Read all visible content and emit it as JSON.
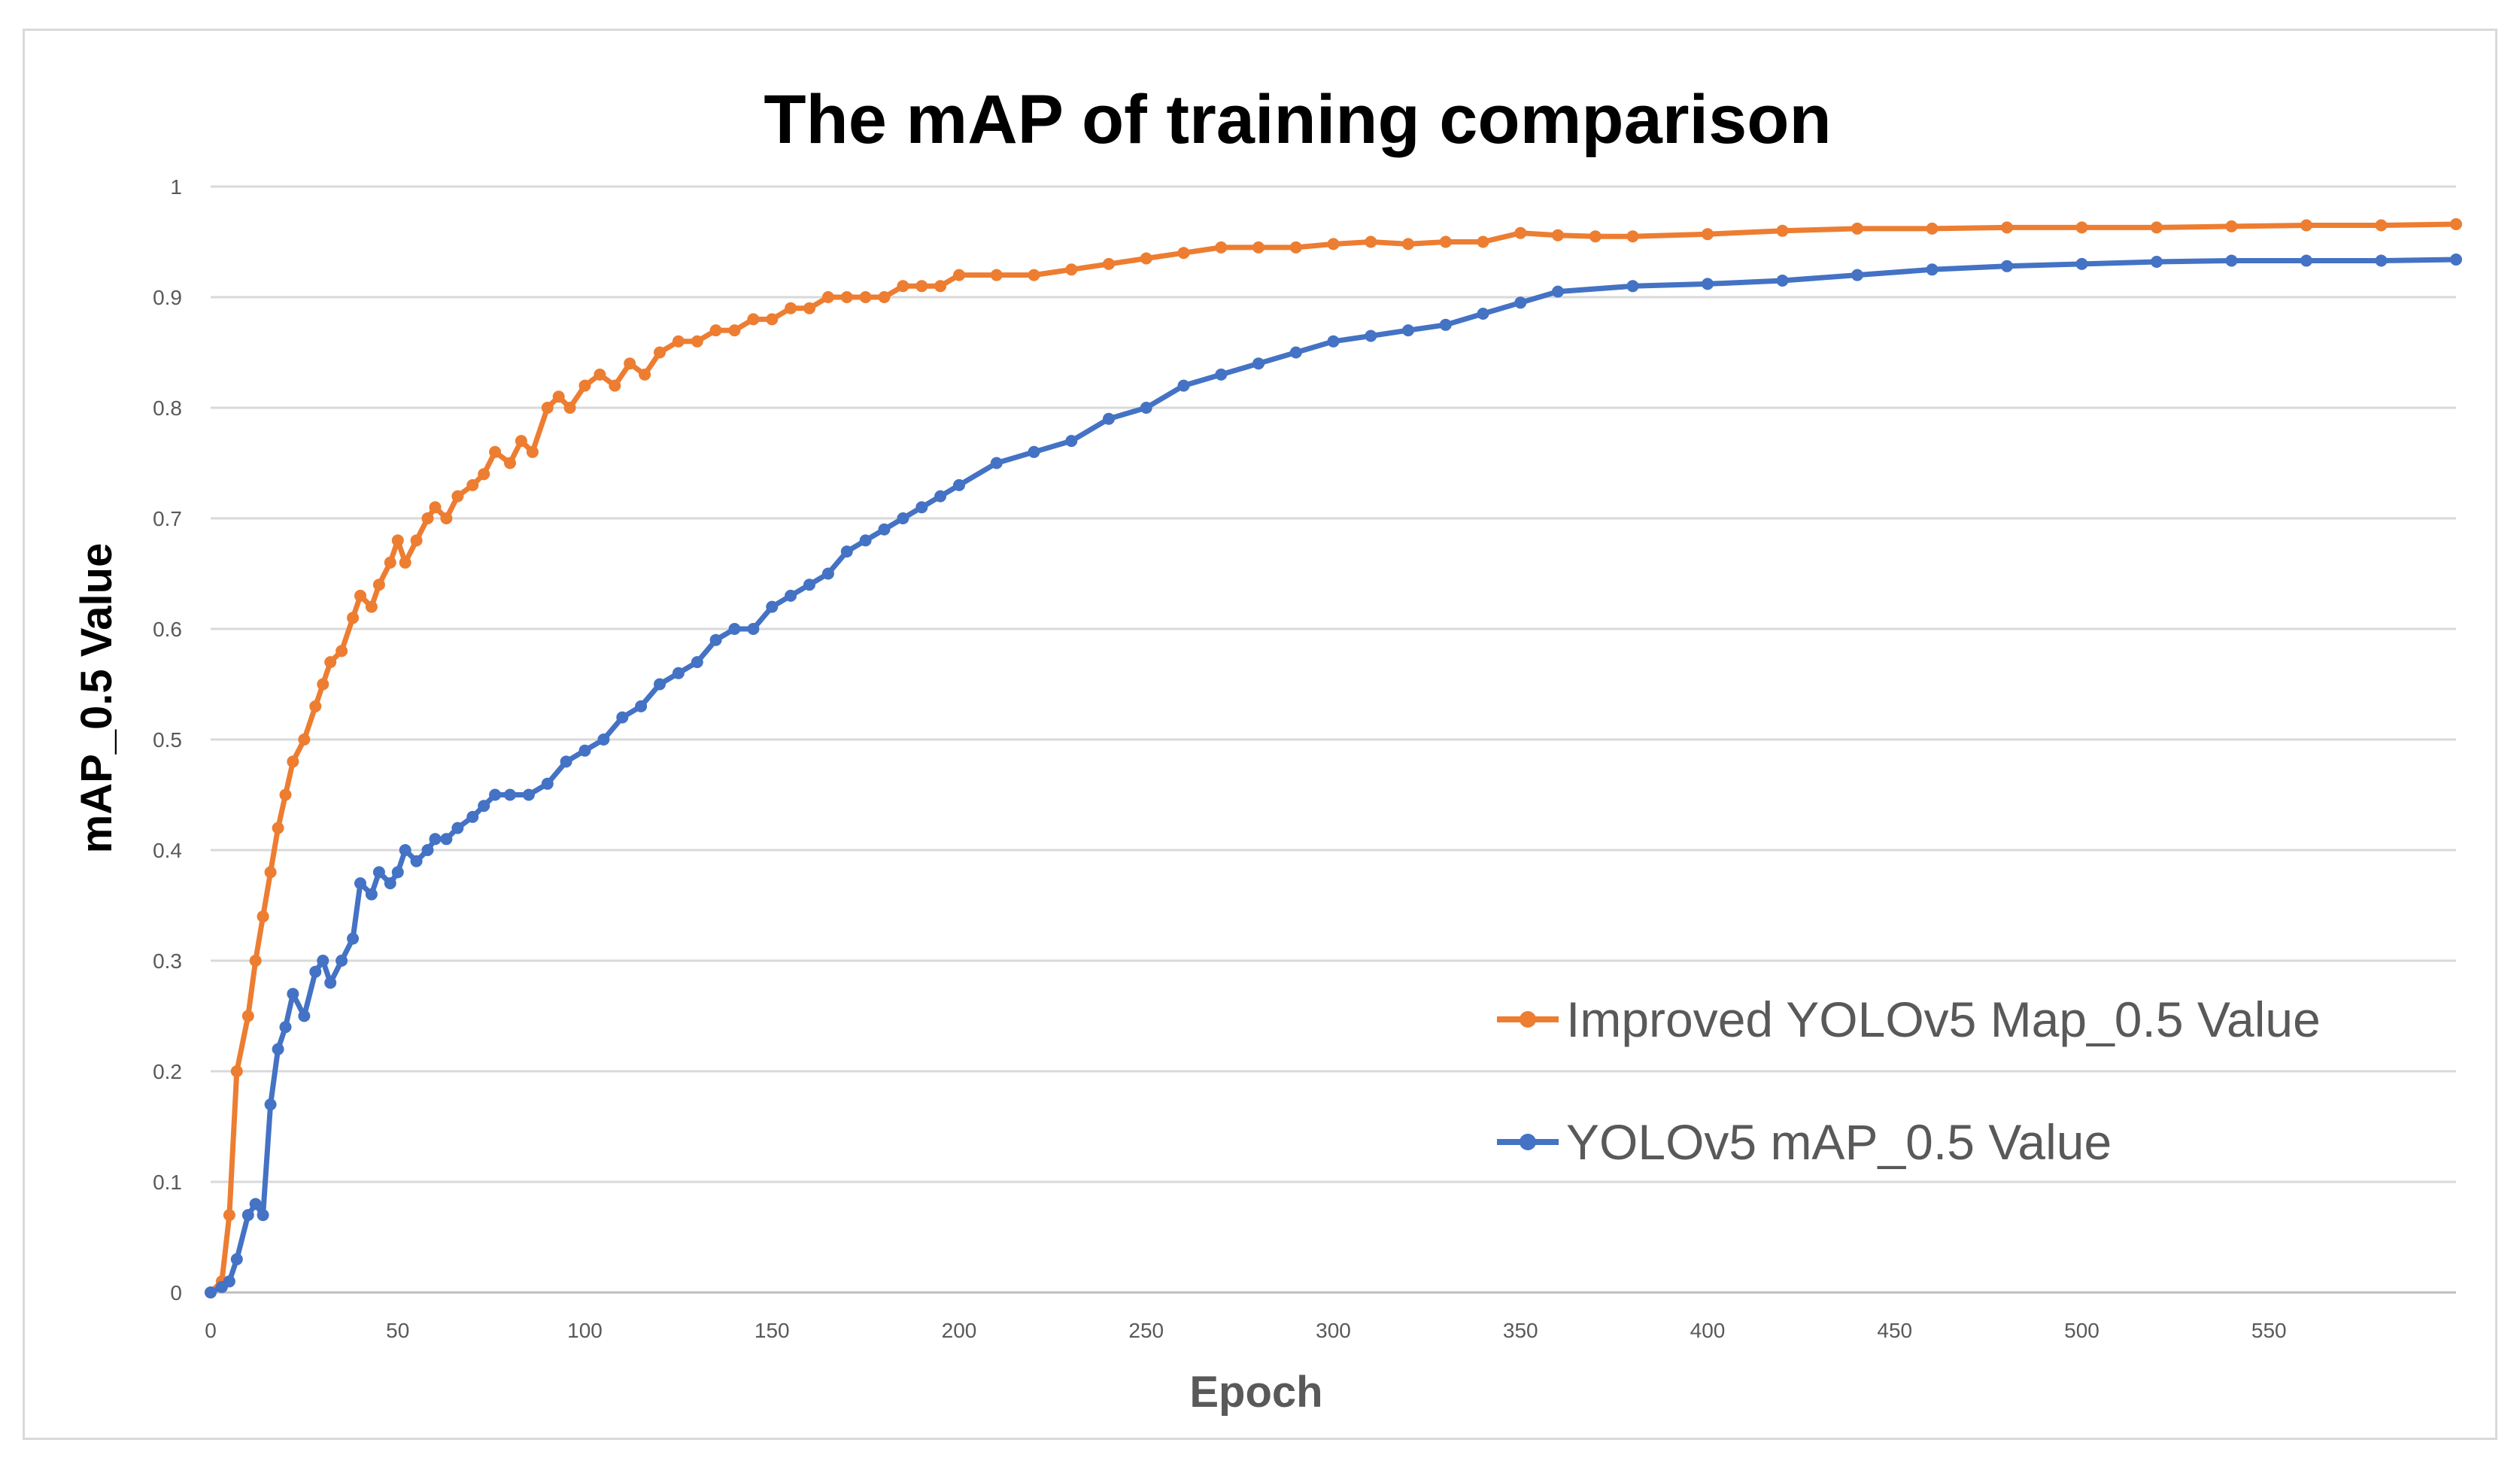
{
  "chart_data": {
    "type": "line",
    "title": "The mAP of  training comparison",
    "xlabel": "Epoch",
    "ylabel": "mAP_0.5 Value",
    "xlim": [
      0,
      600
    ],
    "ylim": [
      0,
      1
    ],
    "x_ticks": [
      "0",
      "50",
      "100",
      "150",
      "200",
      "250",
      "300",
      "350",
      "400",
      "450",
      "500",
      "550"
    ],
    "y_ticks": [
      "0",
      "0.1",
      "0.2",
      "0.3",
      "0.4",
      "0.5",
      "0.6",
      "0.7",
      "0.8",
      "0.9",
      "1"
    ],
    "grid": true,
    "legend_position": "bottom-right",
    "series": [
      {
        "name": "Improved YOLOv5 Map_0.5 Value",
        "color": "#ED7D31",
        "x": [
          0,
          3,
          5,
          7,
          10,
          12,
          14,
          16,
          18,
          20,
          22,
          25,
          28,
          30,
          32,
          35,
          38,
          40,
          43,
          45,
          48,
          50,
          52,
          55,
          58,
          60,
          63,
          66,
          70,
          73,
          76,
          80,
          83,
          86,
          90,
          93,
          96,
          100,
          104,
          108,
          112,
          116,
          120,
          125,
          130,
          135,
          140,
          145,
          150,
          155,
          160,
          165,
          170,
          175,
          180,
          185,
          190,
          195,
          200,
          210,
          220,
          230,
          240,
          250,
          260,
          270,
          280,
          290,
          300,
          310,
          320,
          330,
          340,
          350,
          360,
          370,
          380,
          400,
          420,
          440,
          460,
          480,
          500,
          520,
          540,
          560,
          580,
          600
        ],
        "y": [
          0.0,
          0.01,
          0.07,
          0.2,
          0.25,
          0.3,
          0.34,
          0.38,
          0.42,
          0.45,
          0.48,
          0.5,
          0.53,
          0.55,
          0.57,
          0.58,
          0.61,
          0.63,
          0.62,
          0.64,
          0.66,
          0.68,
          0.66,
          0.68,
          0.7,
          0.71,
          0.7,
          0.72,
          0.73,
          0.74,
          0.76,
          0.75,
          0.77,
          0.76,
          0.8,
          0.81,
          0.8,
          0.82,
          0.83,
          0.82,
          0.84,
          0.83,
          0.85,
          0.86,
          0.86,
          0.87,
          0.87,
          0.88,
          0.88,
          0.89,
          0.89,
          0.9,
          0.9,
          0.9,
          0.9,
          0.91,
          0.91,
          0.91,
          0.92,
          0.92,
          0.92,
          0.925,
          0.93,
          0.935,
          0.94,
          0.945,
          0.945,
          0.945,
          0.948,
          0.95,
          0.948,
          0.95,
          0.95,
          0.958,
          0.956,
          0.955,
          0.955,
          0.957,
          0.96,
          0.962,
          0.962,
          0.963,
          0.963,
          0.963,
          0.964,
          0.965,
          0.965,
          0.966
        ]
      },
      {
        "name": "YOLOv5 mAP_0.5 Value",
        "color": "#4472C4",
        "x": [
          0,
          3,
          5,
          7,
          10,
          12,
          14,
          16,
          18,
          20,
          22,
          25,
          28,
          30,
          32,
          35,
          38,
          40,
          43,
          45,
          48,
          50,
          52,
          55,
          58,
          60,
          63,
          66,
          70,
          73,
          76,
          80,
          85,
          90,
          95,
          100,
          105,
          110,
          115,
          120,
          125,
          130,
          135,
          140,
          145,
          150,
          155,
          160,
          165,
          170,
          175,
          180,
          185,
          190,
          195,
          200,
          210,
          220,
          230,
          240,
          250,
          260,
          270,
          280,
          290,
          300,
          310,
          320,
          330,
          340,
          350,
          360,
          380,
          400,
          420,
          440,
          460,
          480,
          500,
          520,
          540,
          560,
          580,
          600
        ],
        "y": [
          0.0,
          0.005,
          0.01,
          0.03,
          0.07,
          0.08,
          0.07,
          0.17,
          0.22,
          0.24,
          0.27,
          0.25,
          0.29,
          0.3,
          0.28,
          0.3,
          0.32,
          0.37,
          0.36,
          0.38,
          0.37,
          0.38,
          0.4,
          0.39,
          0.4,
          0.41,
          0.41,
          0.42,
          0.43,
          0.44,
          0.45,
          0.45,
          0.45,
          0.46,
          0.48,
          0.49,
          0.5,
          0.52,
          0.53,
          0.55,
          0.56,
          0.57,
          0.59,
          0.6,
          0.6,
          0.62,
          0.63,
          0.64,
          0.65,
          0.67,
          0.68,
          0.69,
          0.7,
          0.71,
          0.72,
          0.73,
          0.75,
          0.76,
          0.77,
          0.79,
          0.8,
          0.82,
          0.83,
          0.84,
          0.85,
          0.86,
          0.865,
          0.87,
          0.875,
          0.885,
          0.895,
          0.905,
          0.91,
          0.912,
          0.915,
          0.92,
          0.925,
          0.928,
          0.93,
          0.932,
          0.933,
          0.933,
          0.933,
          0.934
        ]
      }
    ]
  }
}
